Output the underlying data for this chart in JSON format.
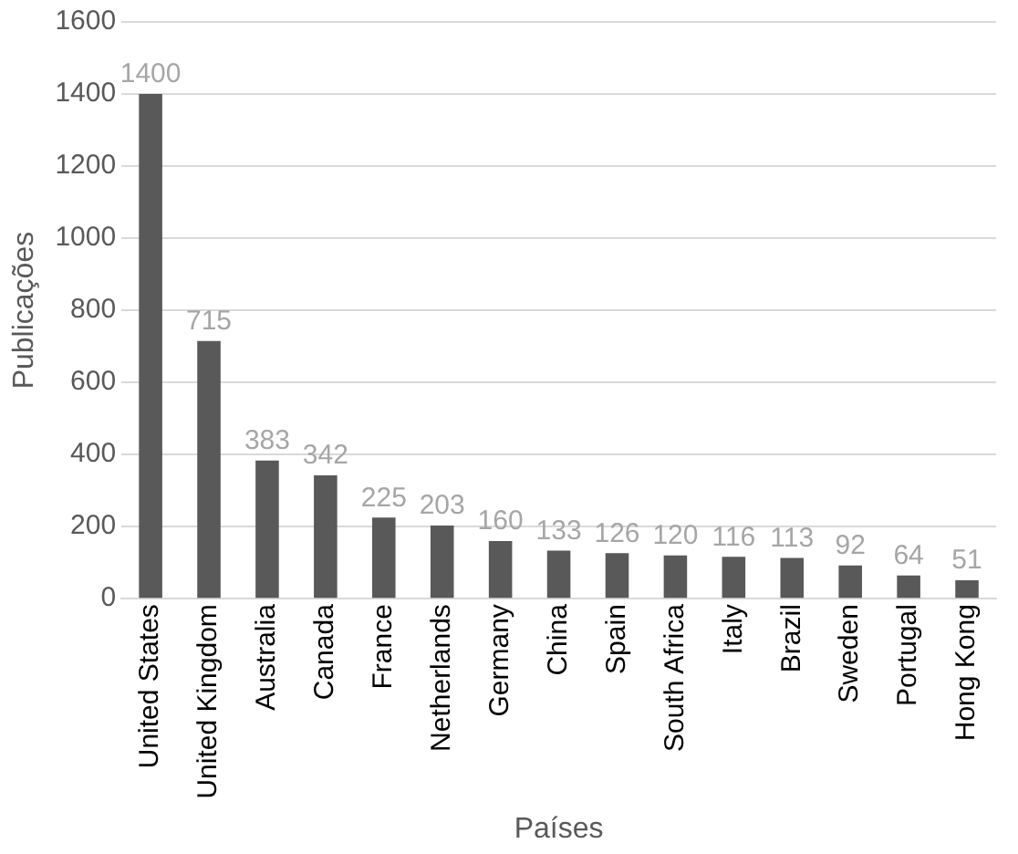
{
  "chart_data": {
    "type": "bar",
    "xlabel": "Países",
    "ylabel": "Publicações",
    "categories": [
      "United States",
      "United Kingdom",
      "Australia",
      "Canada",
      "France",
      "Netherlands",
      "Germany",
      "China",
      "Spain",
      "South Africa",
      "Italy",
      "Brazil",
      "Sweden",
      "Portugal",
      "Hong Kong"
    ],
    "values": [
      1400,
      715,
      383,
      342,
      225,
      203,
      160,
      133,
      126,
      120,
      116,
      113,
      92,
      64,
      51
    ],
    "color": "#595959",
    "ylim": [
      0,
      1600
    ],
    "yticks": [
      0,
      200,
      400,
      600,
      800,
      1000,
      1200,
      1400,
      1600
    ],
    "grid": "y",
    "data_labels": true,
    "legend": false
  }
}
